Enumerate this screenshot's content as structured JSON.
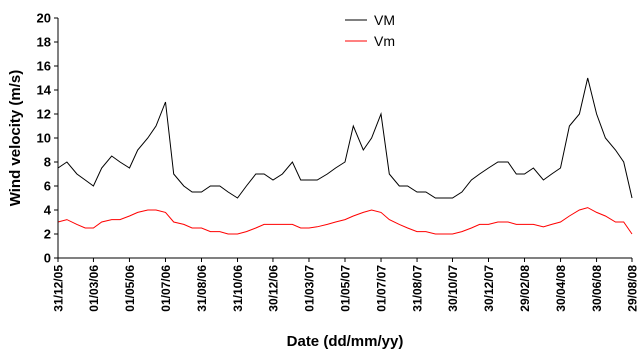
{
  "chart_data": {
    "type": "line",
    "title": "",
    "xlabel": "Date (dd/mm/yy)",
    "ylabel": "Wind velocity (m/s)",
    "ylim": [
      0,
      20
    ],
    "yticks": [
      0,
      2,
      4,
      6,
      8,
      10,
      12,
      14,
      16,
      18,
      20
    ],
    "xlim": [
      "31/12/05",
      "29/08/08"
    ],
    "xticks": [
      "31/12/05",
      "01/03/06",
      "01/05/06",
      "01/07/06",
      "31/08/06",
      "31/10/06",
      "30/12/06",
      "01/03/07",
      "01/05/07",
      "01/07/07",
      "31/08/07",
      "30/10/07",
      "30/12/07",
      "29/02/08",
      "30/04/08",
      "30/06/08",
      "29/08/08"
    ],
    "grid": false,
    "legend_position": "top-center",
    "series": [
      {
        "name": "VM",
        "color": "#000000",
        "x": [
          "31/12/05",
          "15/01/06",
          "01/02/06",
          "15/02/06",
          "01/03/06",
          "15/03/06",
          "01/04/06",
          "15/04/06",
          "01/05/06",
          "15/05/06",
          "01/06/06",
          "15/06/06",
          "01/07/06",
          "15/07/06",
          "01/08/06",
          "15/08/06",
          "31/08/06",
          "15/09/06",
          "01/10/06",
          "15/10/06",
          "31/10/06",
          "15/11/06",
          "01/12/06",
          "15/12/06",
          "30/12/06",
          "15/01/07",
          "01/02/07",
          "15/02/07",
          "01/03/07",
          "15/03/07",
          "01/04/07",
          "15/04/07",
          "01/05/07",
          "15/05/07",
          "01/06/07",
          "15/06/07",
          "01/07/07",
          "15/07/07",
          "01/08/07",
          "15/08/07",
          "31/08/07",
          "15/09/07",
          "01/10/07",
          "15/10/07",
          "30/10/07",
          "15/11/07",
          "01/12/07",
          "15/12/07",
          "30/12/07",
          "15/01/08",
          "01/02/08",
          "15/02/08",
          "29/02/08",
          "15/03/08",
          "01/04/08",
          "15/04/08",
          "30/04/08",
          "15/05/08",
          "01/06/08",
          "15/06/08",
          "30/06/08",
          "15/07/08",
          "01/08/08",
          "15/08/08",
          "29/08/08"
        ],
        "values": [
          7.5,
          8,
          7,
          6.5,
          6,
          7.5,
          8.5,
          8,
          7.5,
          9,
          10,
          11,
          13,
          7,
          6,
          5.5,
          5.5,
          6,
          6,
          5.5,
          5,
          6,
          7,
          7,
          6.5,
          7,
          8,
          6.5,
          6.5,
          6.5,
          7,
          7.5,
          8,
          11,
          9,
          10,
          12,
          7,
          6,
          6,
          5.5,
          5.5,
          5,
          5,
          5,
          5.5,
          6.5,
          7,
          7.5,
          8,
          8,
          7,
          7,
          7.5,
          6.5,
          7,
          7.5,
          11,
          12,
          15,
          12,
          10,
          9,
          8,
          5
        ]
      },
      {
        "name": "Vm",
        "color": "#ff0000",
        "x": [
          "31/12/05",
          "15/01/06",
          "01/02/06",
          "15/02/06",
          "01/03/06",
          "15/03/06",
          "01/04/06",
          "15/04/06",
          "01/05/06",
          "15/05/06",
          "01/06/06",
          "15/06/06",
          "01/07/06",
          "15/07/06",
          "01/08/06",
          "15/08/06",
          "31/08/06",
          "15/09/06",
          "01/10/06",
          "15/10/06",
          "31/10/06",
          "15/11/06",
          "01/12/06",
          "15/12/06",
          "30/12/06",
          "15/01/07",
          "01/02/07",
          "15/02/07",
          "01/03/07",
          "15/03/07",
          "01/04/07",
          "15/04/07",
          "01/05/07",
          "15/05/07",
          "01/06/07",
          "15/06/07",
          "01/07/07",
          "15/07/07",
          "01/08/07",
          "15/08/07",
          "31/08/07",
          "15/09/07",
          "01/10/07",
          "15/10/07",
          "30/10/07",
          "15/11/07",
          "01/12/07",
          "15/12/07",
          "30/12/07",
          "15/01/08",
          "01/02/08",
          "15/02/08",
          "29/02/08",
          "15/03/08",
          "01/04/08",
          "15/04/08",
          "30/04/08",
          "15/05/08",
          "01/06/08",
          "15/06/08",
          "30/06/08",
          "15/07/08",
          "01/08/08",
          "15/08/08",
          "29/08/08"
        ],
        "values": [
          3,
          3.2,
          2.8,
          2.5,
          2.5,
          3,
          3.2,
          3.2,
          3.5,
          3.8,
          4,
          4,
          3.8,
          3,
          2.8,
          2.5,
          2.5,
          2.2,
          2.2,
          2,
          2,
          2.2,
          2.5,
          2.8,
          2.8,
          2.8,
          2.8,
          2.5,
          2.5,
          2.6,
          2.8,
          3,
          3.2,
          3.5,
          3.8,
          4,
          3.8,
          3.2,
          2.8,
          2.5,
          2.2,
          2.2,
          2,
          2,
          2,
          2.2,
          2.5,
          2.8,
          2.8,
          3,
          3,
          2.8,
          2.8,
          2.8,
          2.6,
          2.8,
          3,
          3.5,
          4,
          4.2,
          3.8,
          3.5,
          3,
          3,
          2
        ]
      }
    ]
  }
}
